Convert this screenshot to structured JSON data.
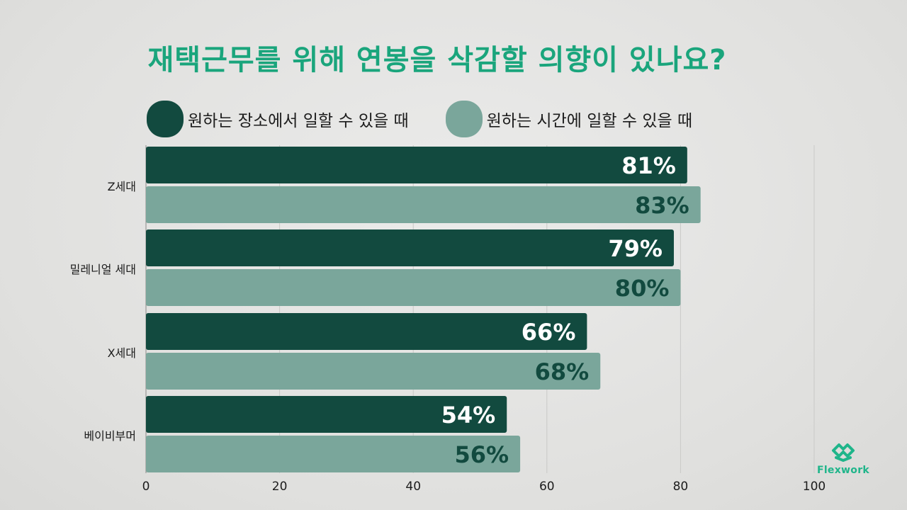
{
  "colors": {
    "title": "#1aa57c",
    "series_place": "#124a3f",
    "series_time": "#7aa69b",
    "label_on_dark": "#ffffff",
    "label_on_light": "#124a3f",
    "grid": "#c9c9c7",
    "logo": "#1fb58a"
  },
  "brand": {
    "logo_text": "Flexwork",
    "logo_icon": "flexwork-logo-icon"
  },
  "chart_data": {
    "type": "bar",
    "orientation": "horizontal",
    "title": "재택근무를 위해 연봉을 삭감할 의향이 있나요?",
    "categories": [
      "Z세대",
      "밀레니얼 세대",
      "X세대",
      "베이비부머"
    ],
    "series": [
      {
        "name": "원하는 장소에서 일할 수 있을 때",
        "values": [
          81,
          79,
          66,
          54
        ],
        "labels": [
          "81%",
          "79%",
          "66%",
          "54%"
        ]
      },
      {
        "name": "원하는 시간에 일할 수 있을 때",
        "values": [
          83,
          80,
          68,
          56
        ],
        "labels": [
          "83%",
          "80%",
          "68%",
          "56%"
        ]
      }
    ],
    "xlim": [
      0,
      100
    ],
    "xticks": [
      "0",
      "20",
      "40",
      "60",
      "80",
      "100"
    ],
    "grid": true,
    "legend_position": "top"
  }
}
